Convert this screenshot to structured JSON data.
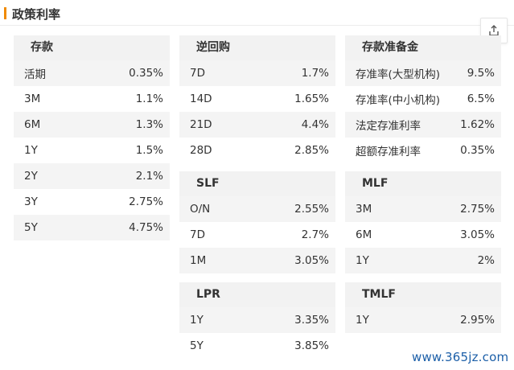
{
  "panel": {
    "title": "政策利率"
  },
  "share_icon": "share-upload-icon",
  "accent_color": "#f08a00",
  "deposit": {
    "title": "存款",
    "rows": [
      {
        "label": "活期",
        "value": "0.35%"
      },
      {
        "label": "3M",
        "value": "1.1%"
      },
      {
        "label": "6M",
        "value": "1.3%"
      },
      {
        "label": "1Y",
        "value": "1.5%"
      },
      {
        "label": "2Y",
        "value": "2.1%"
      },
      {
        "label": "3Y",
        "value": "2.75%"
      },
      {
        "label": "5Y",
        "value": "4.75%"
      }
    ]
  },
  "reverse_repo": {
    "title": "逆回购",
    "rows": [
      {
        "label": "7D",
        "value": "1.7%"
      },
      {
        "label": "14D",
        "value": "1.65%"
      },
      {
        "label": "21D",
        "value": "4.4%"
      },
      {
        "label": "28D",
        "value": "2.85%"
      }
    ]
  },
  "slf": {
    "title": "SLF",
    "rows": [
      {
        "label": "O/N",
        "value": "2.55%"
      },
      {
        "label": "7D",
        "value": "2.7%"
      },
      {
        "label": "1M",
        "value": "3.05%"
      }
    ]
  },
  "lpr": {
    "title": "LPR",
    "rows": [
      {
        "label": "1Y",
        "value": "3.35%"
      },
      {
        "label": "5Y",
        "value": "3.85%"
      }
    ]
  },
  "reserve": {
    "title": "存款准备金",
    "rows": [
      {
        "label": "存准率(大型机构)",
        "value": "9.5%"
      },
      {
        "label": "存准率(中小机构)",
        "value": "6.5%"
      },
      {
        "label": "法定存准利率",
        "value": "1.62%"
      },
      {
        "label": "超额存准利率",
        "value": "0.35%"
      }
    ]
  },
  "mlf": {
    "title": "MLF",
    "rows": [
      {
        "label": "3M",
        "value": "2.75%"
      },
      {
        "label": "6M",
        "value": "3.05%"
      },
      {
        "label": "1Y",
        "value": "2%"
      }
    ]
  },
  "tmlf": {
    "title": "TMLF",
    "rows": [
      {
        "label": "1Y",
        "value": "2.95%"
      }
    ]
  },
  "watermark": "www.365jz.com"
}
